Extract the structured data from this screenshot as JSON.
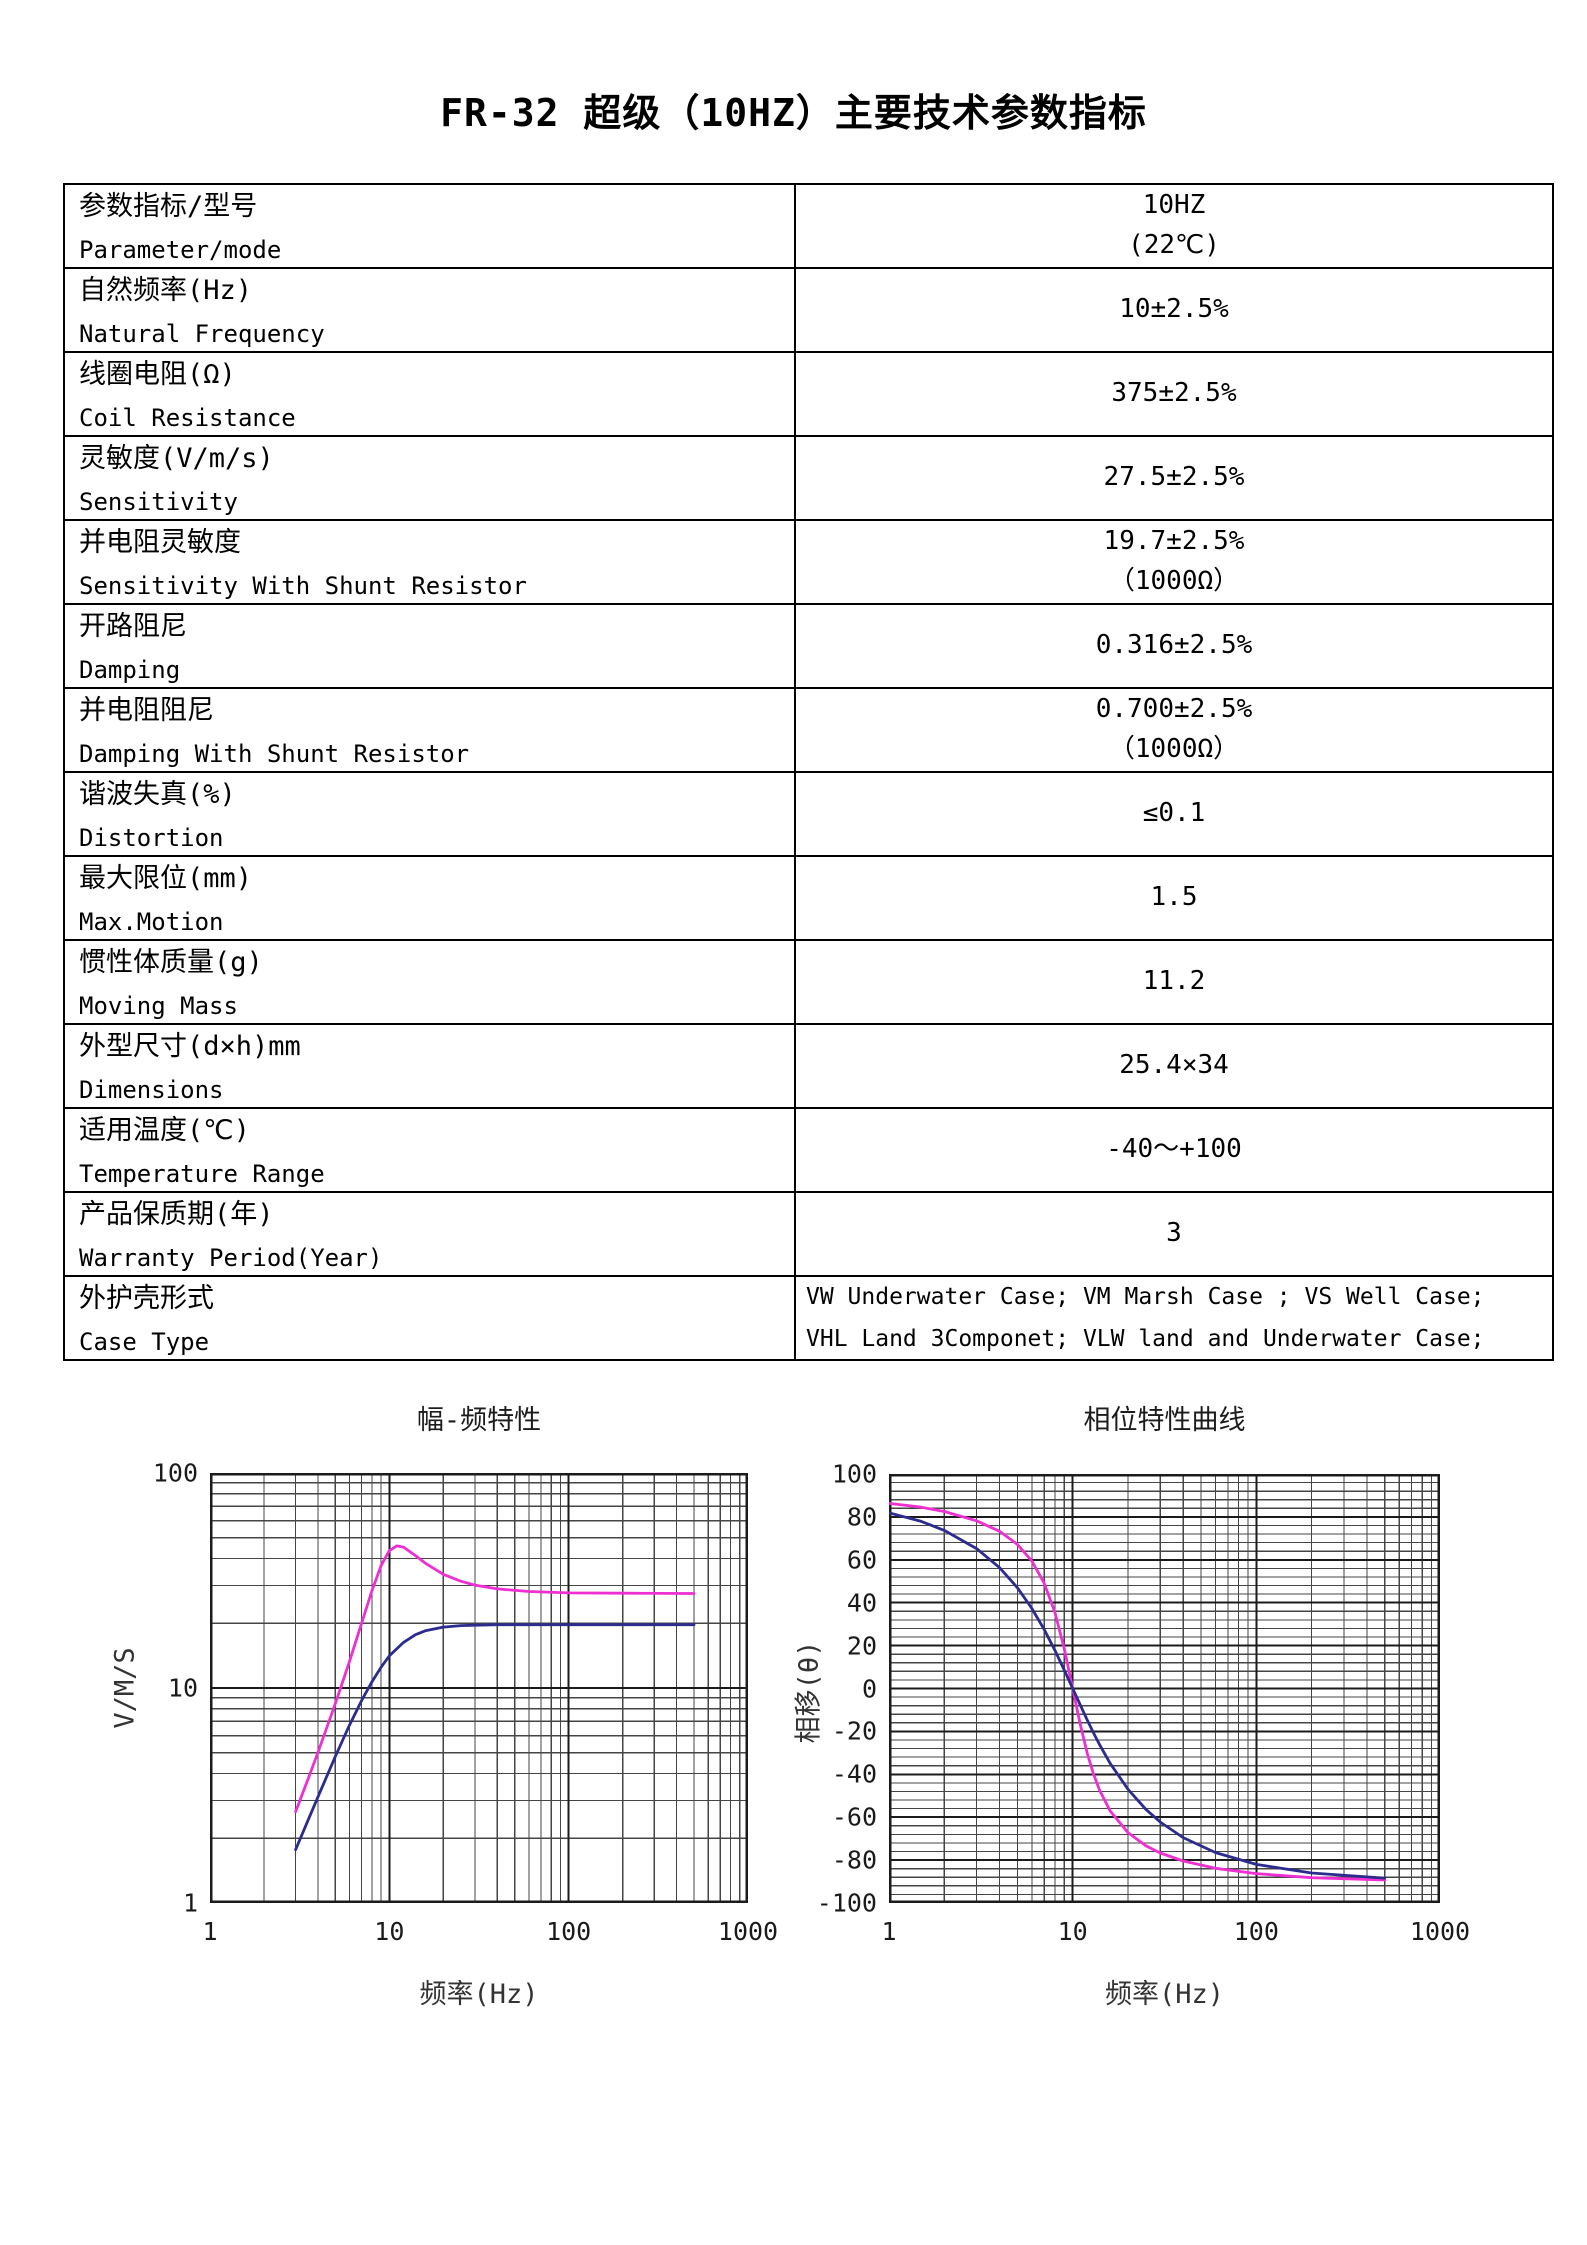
{
  "page": {
    "title": "FR-32 超级（10HZ）主要技术参数指标"
  },
  "table": {
    "rows": [
      {
        "label_cn": "参数指标/型号",
        "label_en": "Parameter/mode",
        "value_lines": [
          "10HZ",
          "(22℃)"
        ]
      },
      {
        "label_cn": "自然频率(Hz)",
        "label_en": "Natural Frequency",
        "value_lines": [
          "10±2.5%"
        ]
      },
      {
        "label_cn": "线圈电阻(Ω)",
        "label_en": "Coil Resistance",
        "value_lines": [
          "375±2.5%"
        ]
      },
      {
        "label_cn": "灵敏度(V/m/s)",
        "label_en": "Sensitivity",
        "value_lines": [
          "27.5±2.5%"
        ]
      },
      {
        "label_cn": "并电阻灵敏度",
        "label_en": "Sensitivity With Shunt Resistor",
        "value_lines": [
          "19.7±2.5%",
          "（1000Ω）"
        ]
      },
      {
        "label_cn": "开路阻尼",
        "label_en": "Damping",
        "value_lines": [
          "0.316±2.5%"
        ]
      },
      {
        "label_cn": "并电阻阻尼",
        "label_en": "Damping With Shunt Resistor",
        "value_lines": [
          "0.700±2.5%",
          "（1000Ω）"
        ]
      },
      {
        "label_cn": "谐波失真(%)",
        "label_en": "Distortion",
        "value_lines": [
          "≤0.1"
        ]
      },
      {
        "label_cn": "最大限位(mm)",
        "label_en": "Max.Motion",
        "value_lines": [
          "1.5"
        ]
      },
      {
        "label_cn": "惯性体质量(g)",
        "label_en": "Moving Mass",
        "value_lines": [
          "11.2"
        ]
      },
      {
        "label_cn": "外型尺寸(d×h)mm",
        "label_en": "Dimensions",
        "value_lines": [
          "25.4×34"
        ]
      },
      {
        "label_cn": "适用温度(℃)",
        "label_en": "Temperature Range",
        "value_lines": [
          "-40～+100"
        ]
      },
      {
        "label_cn": "产品保质期(年)",
        "label_en": "Warranty Period(Year)",
        "value_lines": [
          "3"
        ]
      },
      {
        "label_cn": "外护壳形式",
        "label_en": "Case Type",
        "value_align": "left",
        "value_lines": [
          "VW Underwater Case; VM Marsh Case ; VS Well Case;",
          "VHL Land 3Componet; VLW land and Underwater Case;"
        ]
      }
    ]
  },
  "chart_data": [
    {
      "type": "line",
      "title": "幅-频特性",
      "xlabel": "频率(Hz)",
      "ylabel": "V/M/S",
      "xscale": "log",
      "yscale": "log",
      "xlim": [
        1,
        1000
      ],
      "ylim": [
        1,
        100
      ],
      "xticks": [
        1,
        10,
        100,
        1000
      ],
      "yticks": [
        100,
        10,
        1
      ],
      "grid": true,
      "series": [
        {
          "color": "#ee2fd2",
          "points": [
            [
              3,
              2.66
            ],
            [
              3.5,
              3.72
            ],
            [
              4,
              5.02
            ],
            [
              5,
              8.45
            ],
            [
              6,
              13.3
            ],
            [
              7,
              20.0
            ],
            [
              8,
              28.4
            ],
            [
              9,
              37.1
            ],
            [
              10,
              43.5
            ],
            [
              11,
              45.8
            ],
            [
              12,
              45.2
            ],
            [
              14,
              41.3
            ],
            [
              16,
              37.9
            ],
            [
              20,
              33.8
            ],
            [
              25,
              31.4
            ],
            [
              30,
              30.1
            ],
            [
              40,
              28.9
            ],
            [
              60,
              28.1
            ],
            [
              100,
              27.7
            ],
            [
              200,
              27.6
            ],
            [
              500,
              27.5
            ]
          ]
        },
        {
          "color": "#2c2c8e",
          "points": [
            [
              3,
              1.77
            ],
            [
              3.5,
              2.4
            ],
            [
              4,
              3.12
            ],
            [
              5,
              4.8
            ],
            [
              6,
              6.72
            ],
            [
              7,
              8.74
            ],
            [
              8,
              10.7
            ],
            [
              9,
              12.5
            ],
            [
              10,
              14.1
            ],
            [
              12,
              16.3
            ],
            [
              14,
              17.7
            ],
            [
              16,
              18.5
            ],
            [
              20,
              19.2
            ],
            [
              25,
              19.5
            ],
            [
              30,
              19.6
            ],
            [
              40,
              19.7
            ],
            [
              60,
              19.7
            ],
            [
              100,
              19.7
            ],
            [
              500,
              19.7
            ]
          ]
        }
      ]
    },
    {
      "type": "line",
      "title": "相位特性曲线",
      "xlabel": "频率(Hz)",
      "ylabel": "相移(θ)",
      "xscale": "log",
      "yscale": "linear",
      "xlim": [
        1,
        1000
      ],
      "ylim": [
        -100,
        100
      ],
      "xticks": [
        1,
        10,
        100,
        1000
      ],
      "yticks": [
        100,
        80,
        60,
        40,
        20,
        0,
        -20,
        -40,
        -60,
        -80,
        -100
      ],
      "y_minor_step": 4,
      "grid": true,
      "series": [
        {
          "color": "#ee2fd2",
          "points": [
            [
              1,
              86.3
            ],
            [
              1.5,
              84.5
            ],
            [
              2,
              82.5
            ],
            [
              3,
              78.2
            ],
            [
              4,
              73.3
            ],
            [
              5,
              67.2
            ],
            [
              6,
              59.4
            ],
            [
              7,
              49.1
            ],
            [
              8,
              35.5
            ],
            [
              9,
              18.5
            ],
            [
              10,
              0
            ],
            [
              11,
              -16.8
            ],
            [
              12,
              -30.1
            ],
            [
              13,
              -40.0
            ],
            [
              14,
              -47.3
            ],
            [
              16,
              -57.1
            ],
            [
              20,
              -67.2
            ],
            [
              25,
              -73.3
            ],
            [
              30,
              -76.7
            ],
            [
              40,
              -80.4
            ],
            [
              60,
              -83.8
            ],
            [
              100,
              -86.3
            ],
            [
              200,
              -88.2
            ],
            [
              500,
              -89.3
            ]
          ]
        },
        {
          "color": "#2c2c8e",
          "points": [
            [
              1,
              81.9
            ],
            [
              1.5,
              77.9
            ],
            [
              2,
              73.7
            ],
            [
              3,
              65.2
            ],
            [
              4,
              56.3
            ],
            [
              5,
              47.0
            ],
            [
              6,
              37.3
            ],
            [
              7,
              27.5
            ],
            [
              8,
              17.8
            ],
            [
              9,
              8.6
            ],
            [
              10,
              0
            ],
            [
              12,
              -14.7
            ],
            [
              13,
              -20.8
            ],
            [
              14,
              -26.1
            ],
            [
              16,
              -34.9
            ],
            [
              20,
              -47.0
            ],
            [
              25,
              -56.3
            ],
            [
              30,
              -62.3
            ],
            [
              40,
              -69.5
            ],
            [
              60,
              -76.5
            ],
            [
              100,
              -82.0
            ],
            [
              200,
              -86.0
            ],
            [
              500,
              -88.4
            ]
          ]
        }
      ]
    }
  ]
}
